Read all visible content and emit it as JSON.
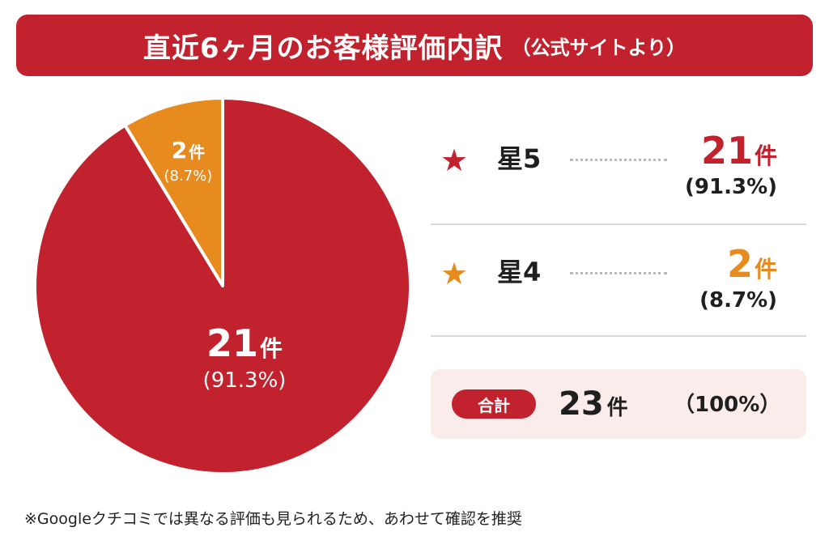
{
  "header": {
    "title": "直近6ヶ月のお客様評価内訳",
    "subtitle": "（公式サイトより）"
  },
  "chart_data": {
    "type": "pie",
    "slices": [
      {
        "label": "星5",
        "value": 21,
        "count_text": "21",
        "unit": "件",
        "percent_text": "(91.3%)",
        "color": "#c2222d"
      },
      {
        "label": "星4",
        "value": 2,
        "count_text": "2",
        "unit": "件",
        "percent_text": "(8.7%)",
        "color": "#e78b1f"
      }
    ]
  },
  "legend": {
    "rows": [
      {
        "label": "星5",
        "count": "21",
        "unit": "件",
        "percent": "(91.3%)",
        "color": "#c2222d",
        "icon": "star-icon"
      },
      {
        "label": "星4",
        "count": "2",
        "unit": "件",
        "percent": "(8.7%)",
        "color": "#e78b1f",
        "icon": "star-icon"
      }
    ],
    "total": {
      "badge": "合計",
      "count": "23",
      "unit": "件",
      "percent": "（100%）"
    }
  },
  "footnote": "※Googleクチコミでは異なる評価も見られるため、あわせて確認を推奨",
  "colors": {
    "primary_red": "#c2222d",
    "orange": "#e78b1f",
    "total_bg": "#fbecec"
  }
}
